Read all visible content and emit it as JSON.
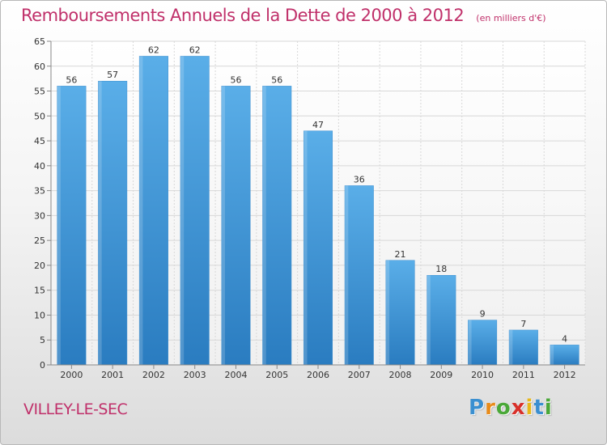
{
  "chart_data": {
    "type": "bar",
    "title": "Remboursements Annuels de la Dette de 2000 à 2012",
    "subtitle": "(en milliers d'€)",
    "categories": [
      "2000",
      "2001",
      "2002",
      "2003",
      "2004",
      "2005",
      "2006",
      "2007",
      "2008",
      "2009",
      "2010",
      "2011",
      "2012"
    ],
    "values": [
      56,
      57,
      62,
      62,
      56,
      56,
      47,
      36,
      21,
      18,
      9,
      7,
      4
    ],
    "value_labels": [
      "56",
      "57",
      "62",
      "62",
      "56",
      "56",
      "47",
      "36",
      "21",
      "18",
      "9",
      "7",
      "4"
    ],
    "ylim": [
      0,
      65
    ],
    "yticks": [
      0,
      5,
      10,
      15,
      20,
      25,
      30,
      35,
      40,
      45,
      50,
      55,
      60,
      65
    ],
    "grid": true,
    "bar_color_top": "#5aaee8",
    "bar_color_bottom": "#2a7cc0",
    "xlabel": "",
    "ylabel": ""
  },
  "footer": {
    "city": "VILLEY-LE-SEC"
  },
  "logo": {
    "letters": [
      "P",
      "r",
      "o",
      "x",
      "i",
      "t",
      "i"
    ],
    "colors": [
      "#3a8fd0",
      "#e88b1a",
      "#4aa838",
      "#d8302a",
      "#e8b81a",
      "#3a8fd0",
      "#4aa838"
    ]
  },
  "colors": {
    "title": "#c0306a",
    "grid": "#d8d8d8",
    "axis": "#888888"
  }
}
